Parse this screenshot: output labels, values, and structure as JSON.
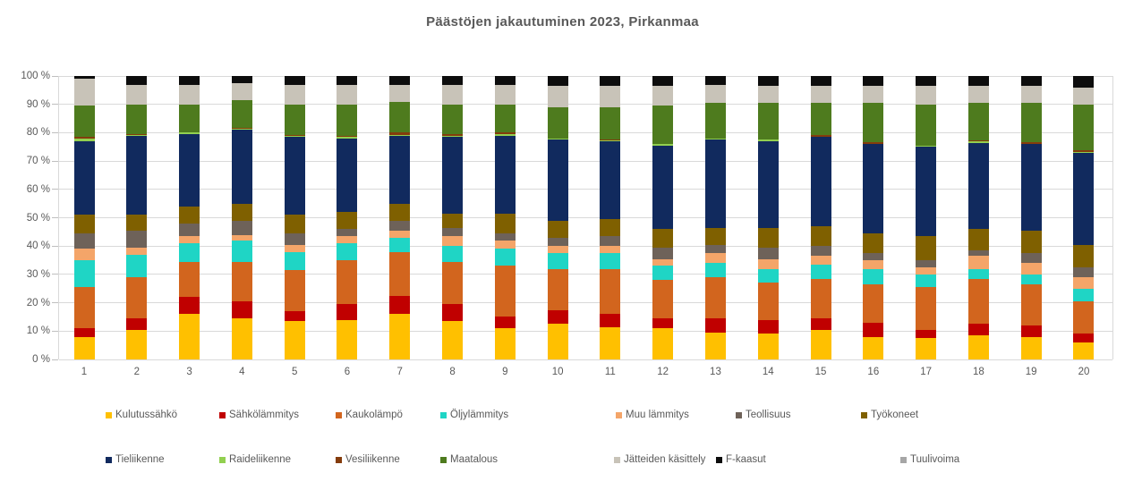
{
  "title": "Päästöjen jakautuminen 2023, Pirkanmaa",
  "chart_data": {
    "type": "bar",
    "stacked": true,
    "units": "percent",
    "title": "Päästöjen jakautuminen 2023, Pirkanmaa",
    "xlabel": "",
    "ylabel": "",
    "ylim": [
      0,
      100
    ],
    "grid": "horizontal",
    "legend_position": "bottom-two-rows",
    "y_ticks": [
      "0 %",
      "10 %",
      "20 %",
      "30 %",
      "40 %",
      "50 %",
      "60 %",
      "70 %",
      "80 %",
      "90 %",
      "100 %"
    ],
    "categories": [
      "1",
      "2",
      "3",
      "4",
      "5",
      "6",
      "7",
      "8",
      "9",
      "10",
      "11",
      "12",
      "13",
      "14",
      "15",
      "16",
      "17",
      "18",
      "19",
      "20"
    ],
    "series": [
      {
        "key": "kulutussahko",
        "name": "Kulutussähkö",
        "color": "#FFC000",
        "values": [
          8,
          10.5,
          16,
          14.5,
          13.5,
          14,
          16,
          13.5,
          11,
          12.5,
          11.5,
          11,
          9.5,
          9,
          10.5,
          8,
          7.5,
          8.5,
          8,
          6
        ]
      },
      {
        "key": "sahkolammitys",
        "name": "Sähkölämmitys",
        "color": "#C00000",
        "values": [
          3,
          4,
          6,
          6,
          3.5,
          5.5,
          6.5,
          6,
          4,
          5,
          4.5,
          3.5,
          5,
          5,
          4,
          5,
          3,
          4,
          4,
          3
        ]
      },
      {
        "key": "kaukolampo",
        "name": "Kaukolämpö",
        "color": "#D2651E",
        "values": [
          14.5,
          14.5,
          12.5,
          14,
          14.5,
          15.5,
          15.5,
          15,
          18,
          14.5,
          16,
          13.5,
          14.5,
          13,
          14,
          13.5,
          15,
          16,
          14.5,
          11.5
        ]
      },
      {
        "key": "oljylammitys",
        "name": "Öljylämmitys",
        "color": "#1FD5C5",
        "values": [
          9.5,
          8,
          6.5,
          7.5,
          6.5,
          6,
          5,
          5.5,
          6,
          5.5,
          5.5,
          5,
          5,
          5,
          5,
          5.5,
          4.5,
          3.5,
          3.5,
          4.5
        ]
      },
      {
        "key": "muu-lammitys",
        "name": "Muu lämmitys",
        "color": "#F4A569",
        "values": [
          4,
          2.5,
          2.5,
          2,
          2.5,
          2.5,
          2.5,
          3.5,
          3,
          2.5,
          2.5,
          2.5,
          3.5,
          3.5,
          3,
          3,
          2.5,
          4.5,
          4,
          4
        ]
      },
      {
        "key": "teollisuus",
        "name": "Teollisuus",
        "color": "#6E6259",
        "values": [
          5.5,
          6,
          4.5,
          5,
          4,
          2.5,
          3.5,
          3,
          2.5,
          3,
          3.5,
          4,
          3,
          4,
          3.5,
          2.5,
          2.5,
          2,
          3.5,
          3.5
        ]
      },
      {
        "key": "tyokoneet",
        "name": "Työkoneet",
        "color": "#7F6000",
        "values": [
          6.5,
          5.5,
          6,
          6,
          6.5,
          6,
          6,
          5,
          7,
          6,
          6,
          6.5,
          6,
          7,
          7,
          7,
          8.5,
          7.5,
          8,
          8
        ]
      },
      {
        "key": "tieliikenne",
        "name": "Tieliikenne",
        "color": "#112A5E",
        "values": [
          26,
          28,
          25.5,
          26,
          27.5,
          26,
          24,
          27,
          27.5,
          28.5,
          27.5,
          29.5,
          31,
          30.5,
          31.5,
          31.5,
          31.5,
          30.5,
          30.5,
          32.5
        ]
      },
      {
        "key": "raideliikenne",
        "name": "Raideliikenne",
        "color": "#92D050",
        "values": [
          1,
          0.3,
          0.5,
          0.3,
          0.4,
          0.5,
          0.3,
          0.5,
          0.5,
          0.3,
          0.3,
          0.5,
          0.3,
          0.5,
          0.2,
          0.2,
          0.3,
          0.5,
          0.2,
          0.3
        ]
      },
      {
        "key": "vesiliikenne",
        "name": "Vesiliikenne",
        "color": "#843C0C",
        "values": [
          0.5,
          0.2,
          0.2,
          0.5,
          0.4,
          0.5,
          0.7,
          0.5,
          0.5,
          0.2,
          0.2,
          0.2,
          0.2,
          0.2,
          0.5,
          0.5,
          0.2,
          0.2,
          0.5,
          0.5
        ]
      },
      {
        "key": "maatalous",
        "name": "Maatalous",
        "color": "#4E7B1E",
        "values": [
          11,
          10.5,
          9.8,
          9.7,
          10.7,
          11,
          11,
          10.5,
          10,
          11,
          11.5,
          13.3,
          12.5,
          12.8,
          11.3,
          13.8,
          14.5,
          13.3,
          13.8,
          16.2
        ]
      },
      {
        "key": "jatteiden-kasittely",
        "name": "Jätteiden käsittely",
        "color": "#C8C3B8",
        "values": [
          9.5,
          7,
          7,
          6,
          7,
          7,
          6,
          7,
          7,
          7.5,
          7.5,
          7,
          6.5,
          6,
          6,
          6,
          6.5,
          6,
          6,
          6
        ]
      },
      {
        "key": "f-kaasut",
        "name": "F-kaasut",
        "color": "#0D0D0D",
        "values": [
          1,
          3,
          3,
          2.5,
          3,
          3,
          3,
          3,
          3,
          3.5,
          3.5,
          3.5,
          3,
          3.5,
          3.5,
          3.5,
          3.5,
          3.5,
          3.5,
          4
        ]
      },
      {
        "key": "tuulivoima",
        "name": "Tuulivoima",
        "color": "#A6A6A6",
        "values": [
          0,
          0,
          0,
          0,
          0,
          0,
          0,
          0,
          0,
          0,
          0,
          0,
          0,
          0,
          0,
          0,
          0,
          0,
          0,
          0
        ]
      }
    ]
  }
}
